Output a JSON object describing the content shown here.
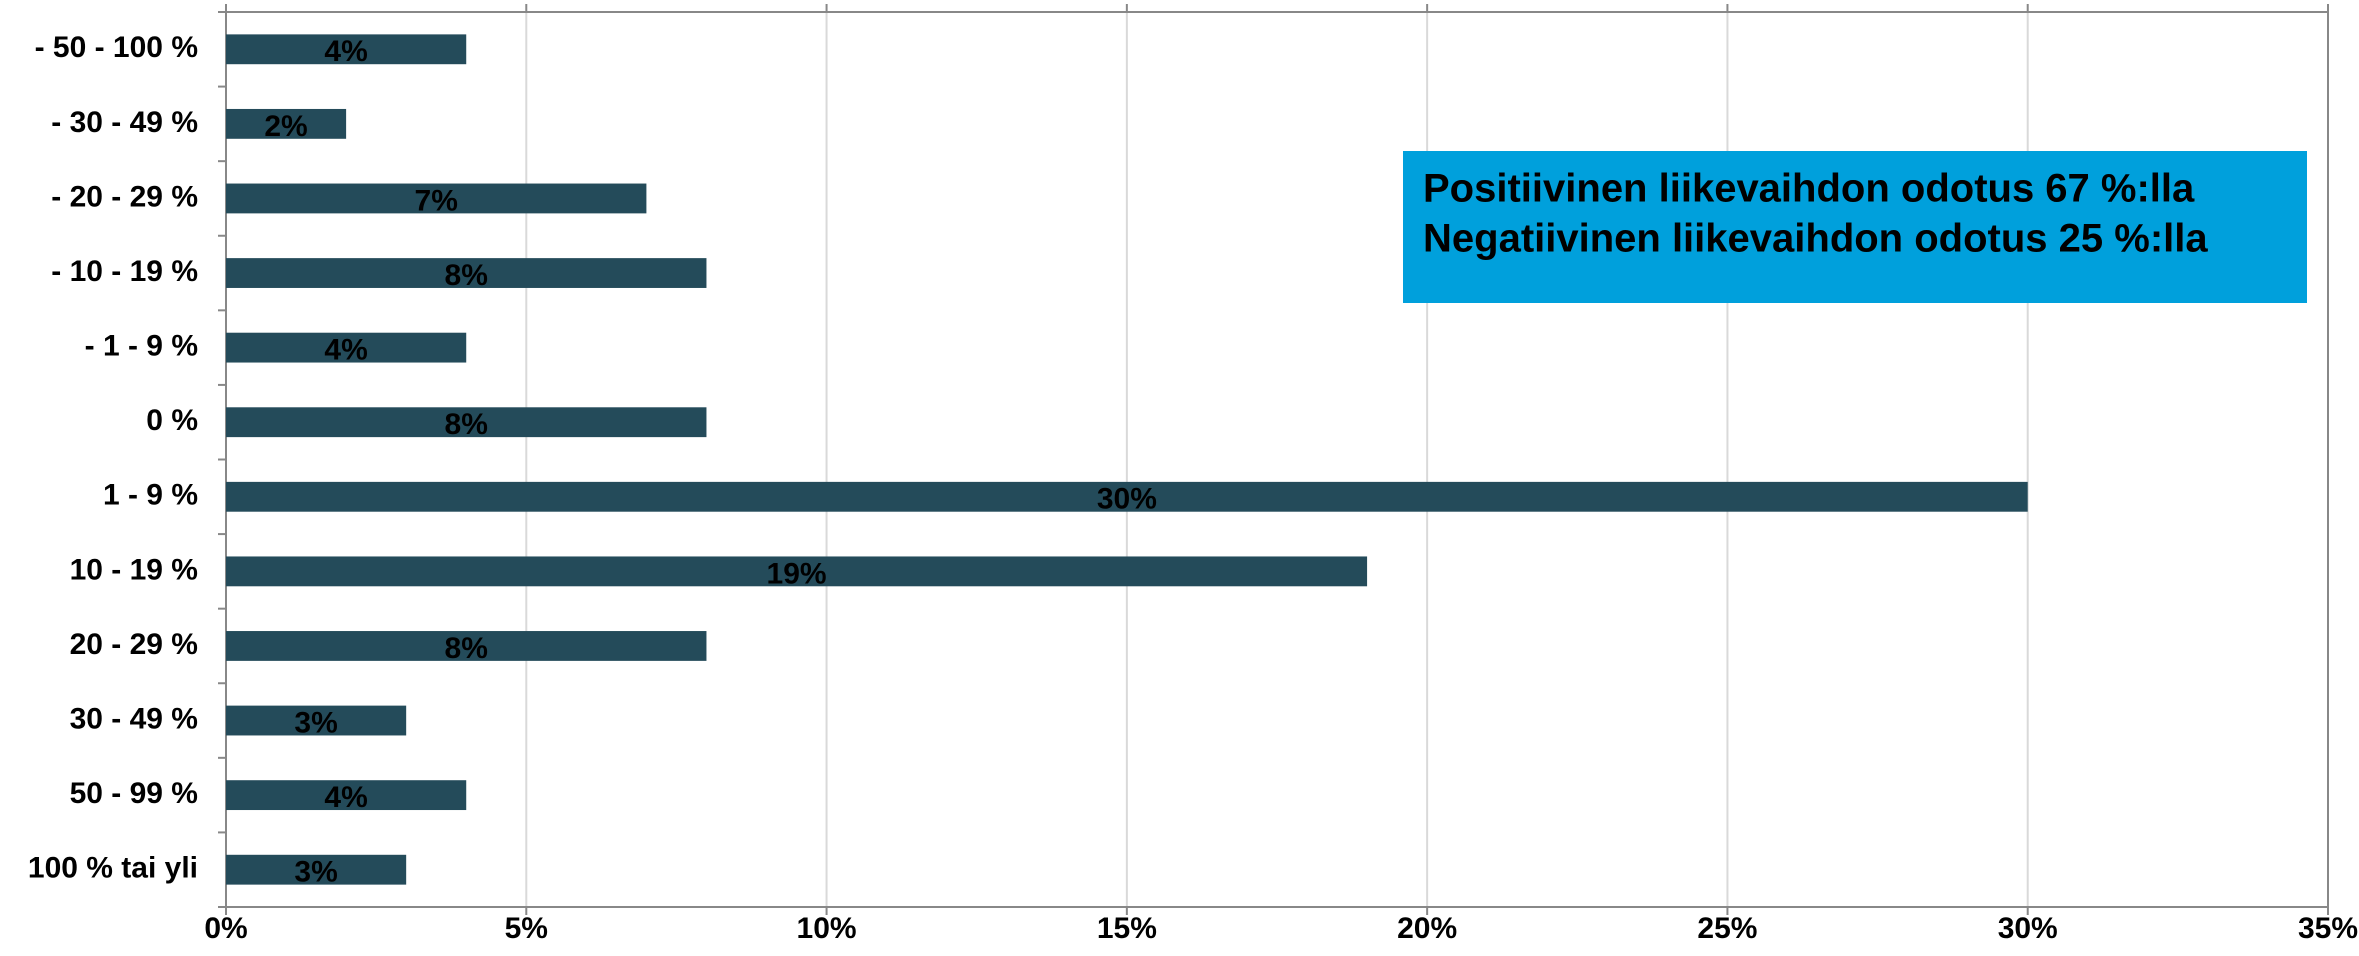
{
  "chart_data": {
    "type": "bar",
    "orientation": "horizontal",
    "categories": [
      "- 50 - 100 %",
      "- 30 - 49 %",
      "- 20 - 29 %",
      "- 10 - 19 %",
      "- 1 - 9 %",
      "0 %",
      "1 - 9 %",
      "10 - 19 %",
      "20 - 29 %",
      "30 - 49 %",
      "50 - 99 %",
      "100 % tai yli"
    ],
    "values": [
      4,
      2,
      7,
      8,
      4,
      8,
      30,
      19,
      8,
      3,
      4,
      3
    ],
    "value_labels": [
      "4%",
      "2%",
      "7%",
      "8%",
      "4%",
      "8%",
      "30%",
      "19%",
      "8%",
      "3%",
      "4%",
      "3%"
    ],
    "color": "#244b5a",
    "xlim": [
      0,
      35
    ],
    "xticks": [
      {
        "value": 0,
        "label": "0%"
      },
      {
        "value": 5,
        "label": "5%"
      },
      {
        "value": 10,
        "label": "10%"
      },
      {
        "value": 15,
        "label": "15%"
      },
      {
        "value": 20,
        "label": "20%"
      },
      {
        "value": 25,
        "label": "25%"
      },
      {
        "value": 30,
        "label": "30%"
      },
      {
        "value": 35,
        "label": "35%"
      }
    ],
    "grid": true,
    "annotations": [
      "Positiivinen liikevaihdon odotus 67 %:lla",
      "Negatiivinen liikevaihdon odotus 25 %:lla"
    ]
  }
}
